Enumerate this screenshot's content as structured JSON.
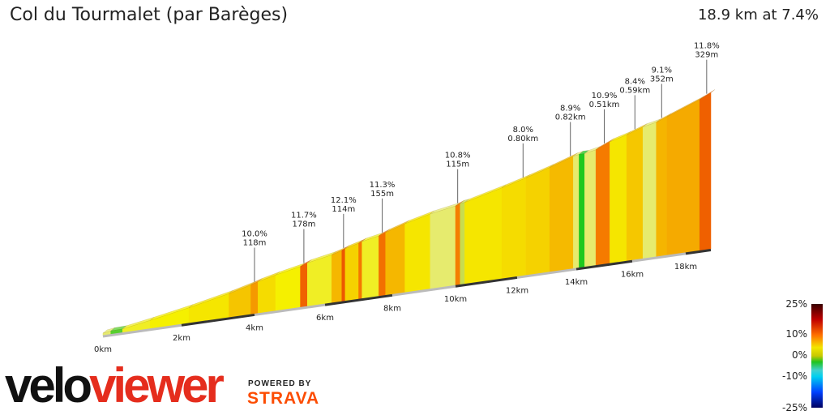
{
  "header": {
    "title": "Col du Tourmalet (par Barèges)",
    "summary": "18.9 km at 7.4%"
  },
  "chart_data": {
    "type": "area",
    "xlabel": "",
    "ylabel": "",
    "x_ticks": [
      "0km",
      "2km",
      "4km",
      "6km",
      "8km",
      "10km",
      "12km",
      "14km",
      "16km",
      "18km"
    ],
    "xlim_km": [
      0,
      18.9
    ],
    "segments": [
      {
        "start": 0,
        "end": 0.2,
        "gradient": 5
      },
      {
        "start": 0.2,
        "end": 0.5,
        "gradient": 1
      },
      {
        "start": 0.5,
        "end": 1.2,
        "gradient": 6
      },
      {
        "start": 1.2,
        "end": 2.2,
        "gradient": 6.5
      },
      {
        "start": 2.2,
        "end": 3.3,
        "gradient": 7
      },
      {
        "start": 3.3,
        "end": 3.9,
        "gradient": 8.5
      },
      {
        "start": 3.9,
        "end": 4.1,
        "gradient": 10
      },
      {
        "start": 4.1,
        "end": 4.6,
        "gradient": 7.5
      },
      {
        "start": 4.6,
        "end": 5.3,
        "gradient": 6.5
      },
      {
        "start": 5.3,
        "end": 5.5,
        "gradient": 11.7
      },
      {
        "start": 5.5,
        "end": 6.2,
        "gradient": 6
      },
      {
        "start": 6.2,
        "end": 6.5,
        "gradient": 9
      },
      {
        "start": 6.5,
        "end": 6.6,
        "gradient": 12.1
      },
      {
        "start": 6.6,
        "end": 7.0,
        "gradient": 8
      },
      {
        "start": 7.0,
        "end": 7.1,
        "gradient": 11
      },
      {
        "start": 7.1,
        "end": 7.6,
        "gradient": 6
      },
      {
        "start": 7.6,
        "end": 7.8,
        "gradient": 11.3
      },
      {
        "start": 7.8,
        "end": 8.4,
        "gradient": 9
      },
      {
        "start": 8.4,
        "end": 9.2,
        "gradient": 7
      },
      {
        "start": 9.2,
        "end": 10.0,
        "gradient": 5
      },
      {
        "start": 10.0,
        "end": 10.15,
        "gradient": 10.8
      },
      {
        "start": 10.15,
        "end": 10.3,
        "gradient": 3
      },
      {
        "start": 10.3,
        "end": 11.5,
        "gradient": 7
      },
      {
        "start": 11.5,
        "end": 12.3,
        "gradient": 7.5
      },
      {
        "start": 12.3,
        "end": 13.1,
        "gradient": 8
      },
      {
        "start": 13.1,
        "end": 13.9,
        "gradient": 8.9
      },
      {
        "start": 13.9,
        "end": 14.1,
        "gradient": 5
      },
      {
        "start": 14.1,
        "end": 14.3,
        "gradient": 0
      },
      {
        "start": 14.3,
        "end": 14.7,
        "gradient": 5
      },
      {
        "start": 14.7,
        "end": 15.2,
        "gradient": 10.9
      },
      {
        "start": 15.2,
        "end": 15.8,
        "gradient": 7
      },
      {
        "start": 15.8,
        "end": 16.4,
        "gradient": 8.4
      },
      {
        "start": 16.4,
        "end": 16.9,
        "gradient": 5
      },
      {
        "start": 16.9,
        "end": 17.3,
        "gradient": 9.1
      },
      {
        "start": 17.3,
        "end": 18.5,
        "gradient": 9.5
      },
      {
        "start": 18.5,
        "end": 18.9,
        "gradient": 11.8
      }
    ],
    "annotations": [
      {
        "km": 4.0,
        "grade": "10.0%",
        "len": "118m"
      },
      {
        "km": 5.4,
        "grade": "11.7%",
        "len": "178m"
      },
      {
        "km": 6.55,
        "grade": "12.1%",
        "len": "114m"
      },
      {
        "km": 7.7,
        "grade": "11.3%",
        "len": "155m"
      },
      {
        "km": 10.07,
        "grade": "10.8%",
        "len": "115m"
      },
      {
        "km": 12.2,
        "grade": "8.0%",
        "len": "0.80km"
      },
      {
        "km": 13.8,
        "grade": "8.9%",
        "len": "0.82km"
      },
      {
        "km": 15.0,
        "grade": "10.9%",
        "len": "0.51km"
      },
      {
        "km": 16.1,
        "grade": "8.4%",
        "len": "0.59km"
      },
      {
        "km": 17.1,
        "grade": "9.1%",
        "len": "352m"
      },
      {
        "km": 18.75,
        "grade": "11.8%",
        "len": "329m"
      }
    ],
    "legend": {
      "labels": [
        "25%",
        "10%",
        "0%",
        "-10%",
        "-25%"
      ]
    }
  },
  "branding": {
    "velo": "velo",
    "viewer": "viewer",
    "powered": "POWERED BY",
    "strava": "STRAVA"
  }
}
